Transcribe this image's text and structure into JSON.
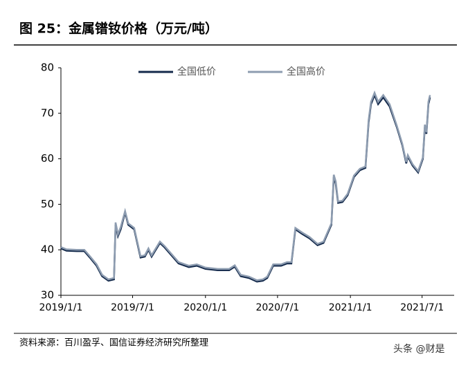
{
  "chart_data": {
    "type": "line",
    "title": "图 25：金属镨钕价格（万元/吨）",
    "source": "资料来源：百川盈孚、国信证券经济研究所整理",
    "watermark": "头条 @财是",
    "x": [
      "2019/1/1",
      "2019/1/15",
      "2019/2/10",
      "2019/3/1",
      "2019/3/15",
      "2019/4/1",
      "2019/4/15",
      "2019/5/1",
      "2019/5/15",
      "2019/5/19",
      "2019/5/25",
      "2019/6/1",
      "2019/6/12",
      "2019/6/20",
      "2019/7/5",
      "2019/7/21",
      "2019/8/1",
      "2019/8/10",
      "2019/8/18",
      "2019/9/8",
      "2019/9/20",
      "2019/10/5",
      "2019/10/25",
      "2019/11/20",
      "2019/12/10",
      "2020/1/1",
      "2020/2/1",
      "2020/3/1",
      "2020/3/15",
      "2020/3/30",
      "2020/4/20",
      "2020/5/10",
      "2020/5/25",
      "2020/6/5",
      "2020/6/20",
      "2020/7/10",
      "2020/7/25",
      "2020/8/5",
      "2020/8/15",
      "2020/9/1",
      "2020/9/20",
      "2020/10/10",
      "2020/10/25",
      "2020/11/14",
      "2020/11/20",
      "2020/11/25",
      "2020/12/1",
      "2020/12/12",
      "2020/12/25",
      "2021/1/10",
      "2021/1/25",
      "2021/2/8",
      "2021/2/16",
      "2021/2/22",
      "2021/3/3",
      "2021/3/12",
      "2021/3/25",
      "2021/4/10",
      "2021/4/28",
      "2021/5/12",
      "2021/5/22",
      "2021/5/26",
      "2021/6/7",
      "2021/6/21",
      "2021/7/3",
      "2021/7/8",
      "2021/7/12",
      "2021/7/17",
      "2021/7/21"
    ],
    "series": [
      {
        "name": "全国低价",
        "color": "#13294b",
        "values": [
          40.3,
          39.8,
          39.7,
          39.7,
          38.3,
          36.5,
          34.2,
          33.2,
          33.5,
          45.5,
          43,
          44.5,
          48.2,
          45.5,
          44.5,
          38.3,
          38.5,
          40,
          38.5,
          41.5,
          40.5,
          39,
          37,
          36.2,
          36.5,
          35.8,
          35.5,
          35.5,
          36.3,
          34.2,
          33.8,
          33,
          33.2,
          33.8,
          36.5,
          36.5,
          37,
          37,
          44.5,
          43.5,
          42.5,
          41,
          41.5,
          45.5,
          56,
          54.5,
          50.3,
          50.5,
          52,
          56,
          57.5,
          58,
          68,
          72,
          74,
          72,
          73.5,
          71.5,
          67,
          63,
          59,
          60.5,
          58.5,
          57,
          60,
          67,
          65.5,
          72,
          73.5
        ]
      },
      {
        "name": "全国高价",
        "color": "#8d9cb0",
        "values": [
          40.6,
          40.1,
          40,
          40,
          38.6,
          36.8,
          34.5,
          33.5,
          33.8,
          46,
          43.4,
          45,
          48.5,
          45.8,
          44.8,
          38.6,
          38.8,
          40.3,
          38.8,
          41.8,
          40.8,
          39.3,
          37.3,
          36.5,
          36.8,
          36.1,
          35.8,
          35.8,
          36.6,
          34.5,
          34.1,
          33.3,
          33.5,
          34.1,
          36.8,
          36.8,
          37.3,
          37.3,
          44.8,
          43.8,
          42.8,
          41.3,
          41.8,
          45.8,
          56.5,
          55,
          50.6,
          50.8,
          52.3,
          56.3,
          57.8,
          58.3,
          68.5,
          72.5,
          74.5,
          72.5,
          74,
          72,
          67.3,
          63.3,
          59.3,
          60.8,
          58.8,
          57.3,
          60.3,
          67.5,
          65.8,
          72.5,
          74
        ]
      }
    ],
    "xlim": [
      "2019/1/1",
      "2021/9/20"
    ],
    "xticks": [
      "2019/1/1",
      "2019/7/1",
      "2020/1/1",
      "2020/7/1",
      "2021/1/1",
      "2021/7/1"
    ],
    "ylim": [
      30,
      80
    ],
    "yticks": [
      30,
      40,
      50,
      60,
      70,
      80
    ],
    "legend": "top"
  }
}
